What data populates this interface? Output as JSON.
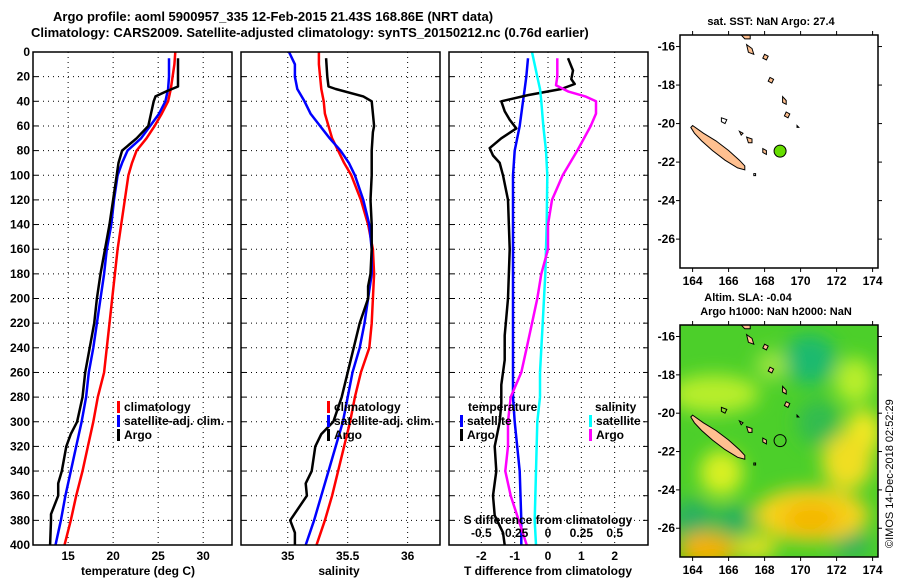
{
  "header": {
    "line1": "Argo profile: aoml 5900957_335 12-Feb-2015 21.43S 168.86E (NRT data)",
    "line2": "Climatology: CARS2009. Satellite-adjusted climatology: synTS_20150212.nc (0.76d earlier)"
  },
  "stamp": "©IMOS 14-Dec-2018 02:52:29",
  "colors": {
    "climatology": "#ff0000",
    "satellite": "#0000ff",
    "argo": "#000000",
    "sal_satellite": "#00ffff",
    "sal_argo": "#ff00ff",
    "land": "#ffc090",
    "argo_marker": "#66dd00"
  },
  "chart_data": [
    {
      "type": "line",
      "name": "temperature-profile",
      "xlabel": "temperature (deg C)",
      "ylabel": "",
      "xlim": [
        11.1,
        33.2
      ],
      "ylim": [
        400,
        0
      ],
      "xticks": [
        15,
        20,
        25,
        30
      ],
      "yticks": [
        0,
        20,
        40,
        60,
        80,
        100,
        120,
        140,
        160,
        180,
        200,
        220,
        240,
        260,
        280,
        300,
        320,
        340,
        360,
        380,
        400
      ],
      "grid": true,
      "legend": {
        "placement": "center-right",
        "entries": [
          "climatology",
          "satellite-adj. clim.",
          "Argo"
        ]
      },
      "series": [
        {
          "name": "climatology",
          "color": "#ff0000",
          "depth": [
            0,
            10,
            20,
            30,
            40,
            50,
            60,
            70,
            80,
            90,
            100,
            120,
            140,
            160,
            180,
            200,
            220,
            240,
            260,
            280,
            300,
            320,
            340,
            360,
            380,
            400
          ],
          "values": [
            26.9,
            26.8,
            26.6,
            26.4,
            26.1,
            25.4,
            24.6,
            23.7,
            22.6,
            22.1,
            21.7,
            21.3,
            20.9,
            20.5,
            20.2,
            19.9,
            19.6,
            19.3,
            19.0,
            18.3,
            17.8,
            17.2,
            16.6,
            15.9,
            15.3,
            14.6
          ]
        },
        {
          "name": "satellite-adj. clim.",
          "color": "#0000ff",
          "depth": [
            5,
            10,
            20,
            30,
            40,
            50,
            60,
            70,
            80,
            90,
            100,
            120,
            140,
            160,
            180,
            200,
            220,
            240,
            260,
            280,
            300,
            320,
            340,
            360,
            380,
            400
          ],
          "values": [
            26.2,
            26.2,
            26.2,
            26.1,
            25.8,
            25.1,
            24.1,
            23.1,
            21.6,
            21.0,
            20.5,
            20.1,
            19.8,
            19.3,
            19.0,
            18.6,
            18.2,
            17.8,
            17.3,
            17.0,
            16.5,
            15.9,
            15.3,
            14.7,
            14.2,
            13.6
          ]
        },
        {
          "name": "Argo",
          "color": "#000000",
          "depth": [
            5,
            10,
            20,
            28,
            32,
            36,
            40,
            50,
            60,
            70,
            80,
            90,
            100,
            120,
            140,
            160,
            180,
            200,
            220,
            240,
            260,
            280,
            300,
            310,
            320,
            340,
            350,
            360,
            375,
            380,
            400
          ],
          "values": [
            27.2,
            27.2,
            27.2,
            27.2,
            25.9,
            24.7,
            24.5,
            24.2,
            23.9,
            22.6,
            21.0,
            20.6,
            20.4,
            20.0,
            19.6,
            19.1,
            18.6,
            18.2,
            17.9,
            17.4,
            16.9,
            16.6,
            16.0,
            15.3,
            14.8,
            14.3,
            13.9,
            13.9,
            13.1,
            13.1,
            13.0
          ]
        }
      ]
    },
    {
      "type": "line",
      "name": "salinity-profile",
      "xlabel": "salinity",
      "ylabel": "",
      "xlim": [
        34.61,
        36.27
      ],
      "ylim": [
        400,
        0
      ],
      "xticks": [
        35,
        35.5,
        36
      ],
      "grid": true,
      "legend": {
        "placement": "center-right",
        "entries": [
          "climatology",
          "satellite-adj. clim.",
          "Argo"
        ]
      },
      "series": [
        {
          "name": "climatology",
          "color": "#ff0000",
          "depth": [
            0,
            10,
            20,
            30,
            40,
            50,
            60,
            70,
            80,
            90,
            100,
            120,
            140,
            160,
            180,
            200,
            220,
            240,
            260,
            280,
            300,
            320,
            340,
            360,
            380,
            400
          ],
          "values": [
            35.26,
            35.26,
            35.27,
            35.28,
            35.3,
            35.31,
            35.34,
            35.37,
            35.42,
            35.47,
            35.53,
            35.61,
            35.67,
            35.71,
            35.72,
            35.71,
            35.7,
            35.68,
            35.61,
            35.56,
            35.52,
            35.47,
            35.42,
            35.37,
            35.31,
            35.24
          ]
        },
        {
          "name": "satellite-adj. clim.",
          "color": "#0000ff",
          "depth": [
            0,
            10,
            20,
            30,
            40,
            50,
            60,
            70,
            80,
            90,
            100,
            120,
            140,
            160,
            180,
            200,
            220,
            240,
            260,
            280,
            300,
            320,
            340,
            360,
            380,
            400
          ],
          "values": [
            35.01,
            35.06,
            35.06,
            35.08,
            35.14,
            35.19,
            35.27,
            35.35,
            35.44,
            35.51,
            35.56,
            35.63,
            35.68,
            35.7,
            35.7,
            35.67,
            35.64,
            35.6,
            35.54,
            35.5,
            35.46,
            35.4,
            35.34,
            35.28,
            35.22,
            35.15
          ]
        },
        {
          "name": "Argo",
          "color": "#000000",
          "depth": [
            5,
            20,
            28,
            30,
            36,
            40,
            60,
            65,
            80,
            100,
            120,
            140,
            160,
            180,
            190,
            200,
            220,
            240,
            260,
            280,
            300,
            310,
            320,
            340,
            350,
            360,
            380,
            390,
            400
          ],
          "values": [
            35.32,
            35.33,
            35.34,
            35.4,
            35.63,
            35.7,
            35.72,
            35.71,
            35.7,
            35.7,
            35.69,
            35.7,
            35.7,
            35.69,
            35.67,
            35.67,
            35.6,
            35.55,
            35.5,
            35.45,
            35.38,
            35.28,
            35.23,
            35.2,
            35.15,
            35.16,
            35.02,
            35.06,
            35.06
          ]
        }
      ]
    },
    {
      "type": "line",
      "name": "difference-profile",
      "xlabel": "T difference from climatology",
      "x2label": "S difference from climatology",
      "xlim": [
        -2.97,
        3.0
      ],
      "x2lim": [
        -0.7425,
        0.75
      ],
      "ylim": [
        400,
        0
      ],
      "xticks": [
        -2,
        -1,
        0,
        1,
        2
      ],
      "x2ticks": [
        -0.5,
        -0.25,
        0,
        0.25,
        0.5
      ],
      "grid": true,
      "legend": {
        "placement": "lower-center",
        "temperature_title": "temperature",
        "salinity_title": "salinity",
        "entries": [
          "satellite",
          "Argo",
          "satellite",
          "Argo"
        ]
      },
      "series": [
        {
          "name": "temperature satellite",
          "color": "#0000ff",
          "axis": "T",
          "depth": [
            5,
            20,
            30,
            40,
            60,
            80,
            100,
            120,
            160,
            200,
            240,
            280,
            300,
            340,
            380,
            400
          ],
          "values": [
            -0.6,
            -0.65,
            -0.7,
            -0.75,
            -0.85,
            -1.0,
            -1.05,
            -1.05,
            -1.05,
            -1.05,
            -1.05,
            -1.05,
            -1.0,
            -0.85,
            -0.8,
            -0.8
          ]
        },
        {
          "name": "temperature Argo",
          "color": "#000000",
          "axis": "T",
          "depth": [
            5,
            15,
            22,
            26,
            30,
            35,
            40,
            48,
            55,
            62,
            70,
            78,
            84,
            90,
            100,
            120,
            160,
            200,
            230,
            250,
            270,
            285,
            300,
            320,
            340,
            360,
            376,
            390,
            400
          ],
          "values": [
            0.6,
            0.75,
            0.7,
            0.8,
            0.4,
            -0.6,
            -1.4,
            -1.3,
            -1.15,
            -0.95,
            -1.4,
            -1.75,
            -1.65,
            -1.45,
            -1.35,
            -1.2,
            -1.15,
            -1.2,
            -1.3,
            -1.3,
            -1.4,
            -1.4,
            -1.45,
            -1.6,
            -1.55,
            -1.65,
            -1.6,
            -1.35,
            -1.3
          ]
        },
        {
          "name": "salinity satellite",
          "color": "#00ffff",
          "axis": "S",
          "depth": [
            0,
            20,
            30,
            40,
            60,
            80,
            100,
            140,
            180,
            220,
            260,
            280,
            300,
            340,
            380,
            400
          ],
          "values": [
            -0.12,
            -0.08,
            -0.06,
            -0.05,
            -0.035,
            -0.015,
            -0.005,
            -0.01,
            -0.02,
            -0.04,
            -0.06,
            -0.06,
            -0.08,
            -0.09,
            -0.1,
            -0.09
          ]
        },
        {
          "name": "salinity Argo",
          "color": "#ff00ff",
          "axis": "S",
          "depth": [
            5,
            20,
            27,
            32,
            36,
            40,
            50,
            60,
            80,
            100,
            120,
            140,
            160,
            180,
            200,
            220,
            240,
            260,
            280,
            300,
            320,
            340,
            360,
            380,
            400
          ],
          "values": [
            0.07,
            0.07,
            0.06,
            0.15,
            0.28,
            0.36,
            0.36,
            0.32,
            0.22,
            0.11,
            0.03,
            0.0,
            0.0,
            -0.05,
            -0.08,
            -0.12,
            -0.16,
            -0.2,
            -0.28,
            -0.3,
            -0.3,
            -0.32,
            -0.28,
            -0.22,
            -0.16
          ]
        }
      ]
    },
    {
      "type": "scatter",
      "name": "sst-map",
      "title": "sat. SST: NaN Argo: 27.4",
      "xlim": [
        163.3,
        174.3
      ],
      "ylim": [
        -27.5,
        -15.4
      ],
      "xticks": [
        164,
        166,
        168,
        170,
        172,
        174
      ],
      "yticks": [
        -16,
        -18,
        -20,
        -22,
        -24,
        -26
      ],
      "argo_position": {
        "lon": 168.86,
        "lat": -21.43
      }
    },
    {
      "type": "heatmap",
      "name": "sla-map",
      "title": "Altim. SLA: -0.04",
      "subtitle": "Argo h1000: NaN h2000: NaN",
      "xlim": [
        163.3,
        174.3
      ],
      "ylim": [
        -27.5,
        -15.4
      ],
      "xticks": [
        164,
        166,
        168,
        170,
        172,
        174
      ],
      "yticks": [
        -16,
        -18,
        -20,
        -22,
        -24,
        -26
      ],
      "argo_position": {
        "lon": 168.86,
        "lat": -21.43
      }
    }
  ]
}
